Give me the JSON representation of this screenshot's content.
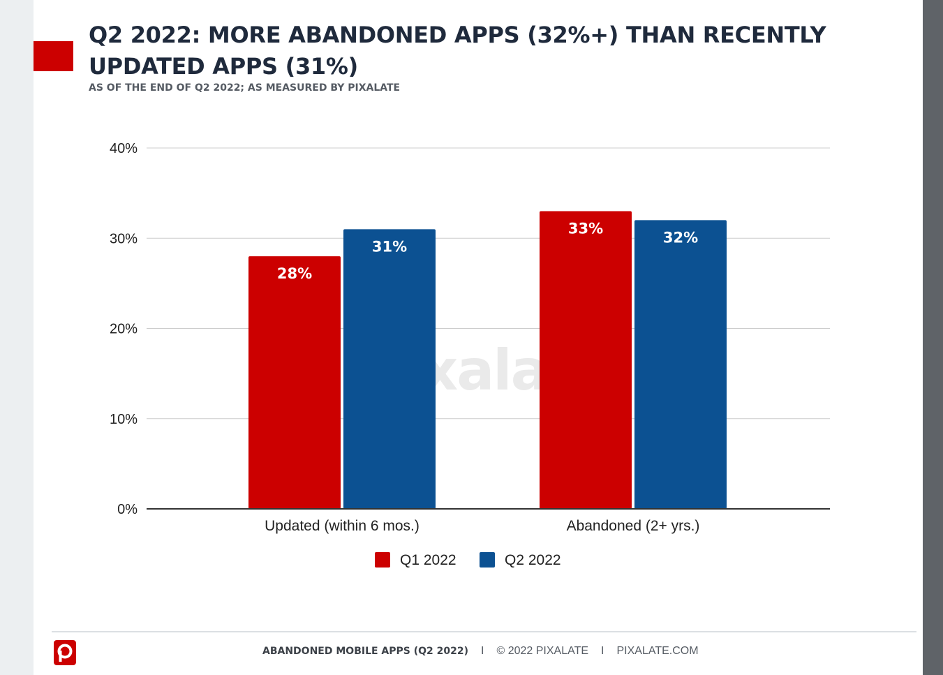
{
  "colors": {
    "accent": "#cc0000",
    "q1": "#cc0000",
    "q2": "#0c5192",
    "title": "#1f2a3c",
    "grid": "#cccccc",
    "axis": "#333333"
  },
  "header": {
    "title": "Q2 2022: MORE ABANDONED APPS (32%+) THAN RECENTLY UPDATED APPS (31%)",
    "subtitle": "AS OF THE END OF Q2 2022; AS MEASURED BY PIXALATE"
  },
  "watermark": "pixalate",
  "chart_data": {
    "type": "bar",
    "title": "Q2 2022: MORE ABANDONED APPS (32%+) THAN RECENTLY UPDATED APPS (31%)",
    "subtitle": "AS OF THE END OF Q2 2022; AS MEASURED BY PIXALATE",
    "categories": [
      "Updated (within 6 mos.)",
      "Abandoned (2+ yrs.)"
    ],
    "series": [
      {
        "name": "Q1 2022",
        "values": [
          28,
          33
        ],
        "labels": [
          "28%",
          "33%"
        ],
        "color": "#cc0000"
      },
      {
        "name": "Q2 2022",
        "values": [
          31,
          32
        ],
        "labels": [
          "31%",
          "32%"
        ],
        "color": "#0c5192"
      }
    ],
    "yticks": [
      0,
      10,
      20,
      30,
      40
    ],
    "ytick_labels": [
      "0%",
      "10%",
      "20%",
      "30%",
      "40%"
    ],
    "ylim": [
      0,
      40
    ],
    "xlabel": "",
    "ylabel": "",
    "grid": true,
    "legend_position": "bottom-center"
  },
  "footer": {
    "report": "ABANDONED MOBILE APPS (Q2 2022)",
    "separator": "I",
    "copyright": "© 2022 PIXALATE",
    "site": "PIXALATE.COM",
    "logo_letter": "p"
  }
}
